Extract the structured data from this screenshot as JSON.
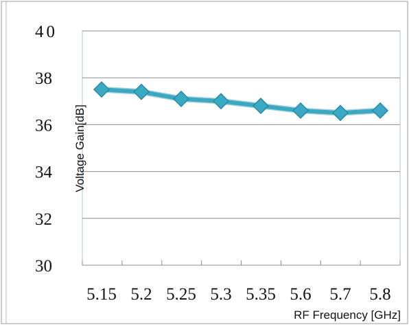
{
  "chart_data": {
    "type": "line",
    "categories": [
      "5.15",
      "5.2",
      "5.25",
      "5.3",
      "5.35",
      "5.6",
      "5.7",
      "5.8"
    ],
    "series": [
      {
        "values": [
          37.5,
          37.4,
          37.1,
          37.0,
          36.8,
          36.6,
          36.5,
          36.6
        ]
      }
    ],
    "y_ticks": [
      "30",
      "32",
      "34",
      "36",
      "38",
      "40"
    ],
    "ylim": [
      30,
      40
    ],
    "xlabel": "RF Frequency [GHz]",
    "ylabel": "Voltage Gain[dB]",
    "grid": "horizontal",
    "series_color": "#3aa9c4",
    "marker": "diamond"
  }
}
